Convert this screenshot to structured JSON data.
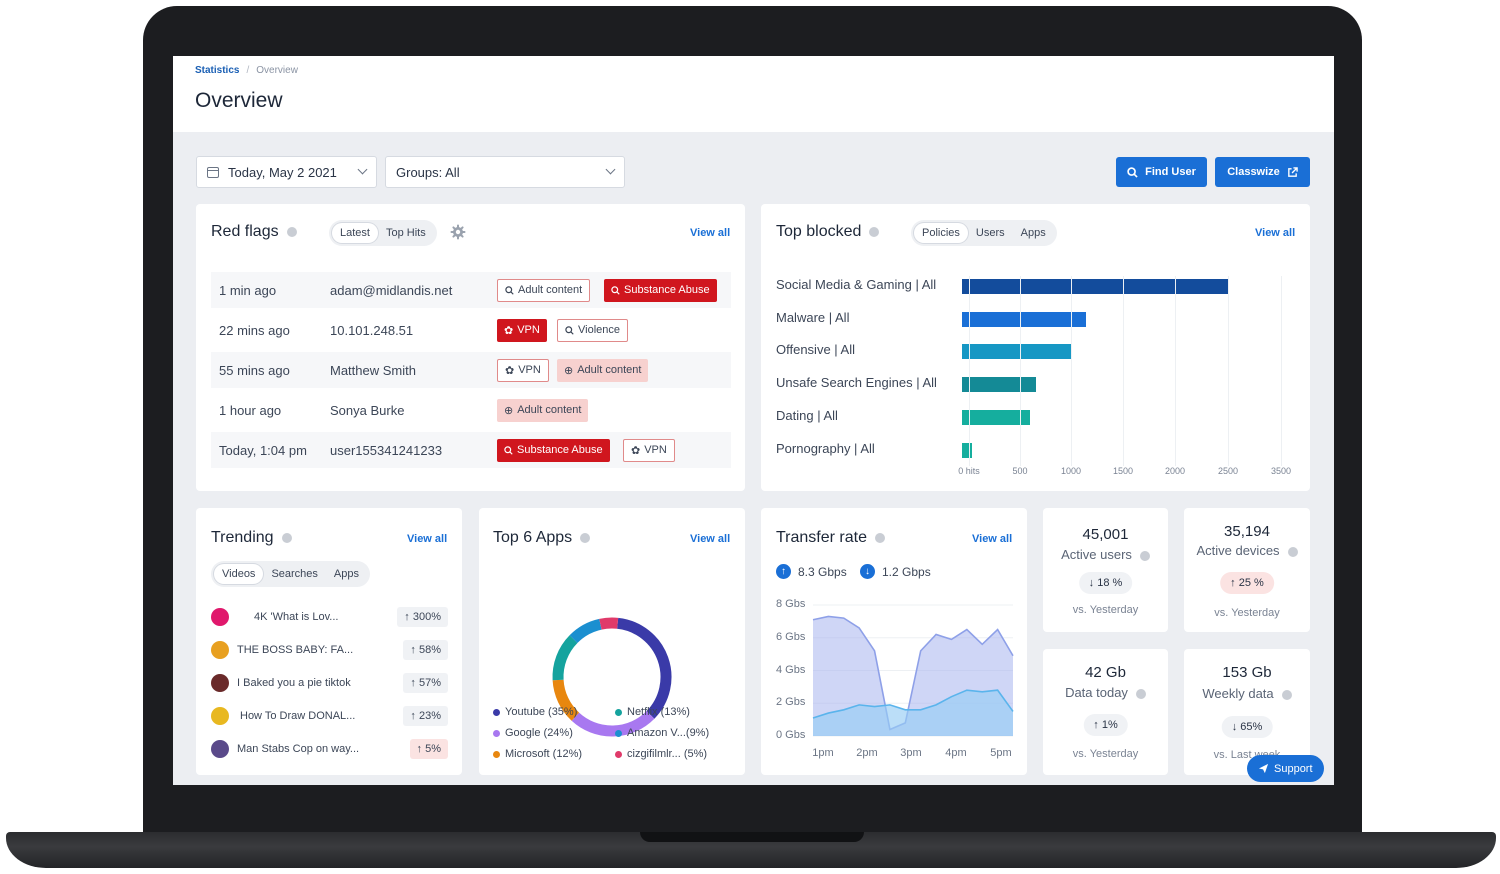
{
  "breadcrumb": {
    "root": "Statistics",
    "current": "Overview"
  },
  "page_title": "Overview",
  "filters": {
    "date": "Today, May 2 2021",
    "groups": "Groups: All"
  },
  "actions": {
    "find_user": "Find User",
    "classwize": "Classwize"
  },
  "red_flags": {
    "title": "Red flags",
    "tabs": [
      "Latest",
      "Top Hits"
    ],
    "view_all": "View all",
    "rows": [
      {
        "time": "1 min ago",
        "user": "adam@midlandis.net"
      },
      {
        "time": "22 mins ago",
        "user": "10.101.248.51"
      },
      {
        "time": "55 mins ago",
        "user": "Matthew Smith"
      },
      {
        "time": "1 hour ago",
        "user": "Sonya Burke"
      },
      {
        "time": "Today, 1:04 pm",
        "user": "user155341241233"
      }
    ],
    "tags": {
      "adult_content": "Adult content",
      "substance_abuse": "Substance Abuse",
      "vpn": "VPN",
      "violence": "Violence"
    }
  },
  "top_blocked": {
    "title": "Top blocked",
    "tabs": [
      "Policies",
      "Users",
      "Apps"
    ],
    "view_all": "View all",
    "chart_data": {
      "type": "bar",
      "orientation": "horizontal",
      "categories": [
        "Social Media & Gaming | All",
        "Malware | All",
        "Offensive | All",
        "Unsafe Search Engines | All",
        "Dating | All",
        "Pornography | All"
      ],
      "values": [
        2800,
        1300,
        1150,
        780,
        720,
        100
      ],
      "x_ticks": [
        "0 hits",
        "500",
        "1000",
        "1500",
        "2000",
        "2500",
        "3500"
      ],
      "colors": [
        "#134c9c",
        "#1a6fd6",
        "#1697c4",
        "#148a96",
        "#15ae9e",
        "#15ae9e"
      ]
    }
  },
  "trending": {
    "title": "Trending",
    "tabs": [
      "Videos",
      "Searches",
      "Apps"
    ],
    "view_all": "View all",
    "items": [
      {
        "title": "4K 'What is Lov...",
        "change": "↑ 300%",
        "color": "#e0186c"
      },
      {
        "title": "THE BOSS BABY: FA...",
        "change": "↑ 58%",
        "color": "#e8a020"
      },
      {
        "title": "I Baked you a pie tiktok",
        "change": "↑ 57%",
        "color": "#6a2a2a"
      },
      {
        "title": "How To Draw DONAL...",
        "change": "↑ 23%",
        "color": "#e8b820"
      },
      {
        "title": "Man Stabs Cop on way...",
        "change": "↑ 5%",
        "color": "#5a4a8a"
      }
    ]
  },
  "top_apps": {
    "title": "Top 6 Apps",
    "view_all": "View all",
    "chart_data": {
      "type": "pie",
      "variant": "donut",
      "categories": [
        "Youtube",
        "Netflix",
        "Google",
        "Amazon V...",
        "Microsoft",
        "cizgifilmlr..."
      ],
      "values": [
        35,
        13,
        24,
        9,
        12,
        5
      ],
      "legend": [
        "Youtube (35%)",
        "Netflix (13%)",
        "Google (24%)",
        "Amazon V...(9%)",
        "Microsoft (12%)",
        "cizgifilmlr... (5%)"
      ],
      "colors": [
        "#3a3aa8",
        "#15a39e",
        "#a878f0",
        "#1b8fd0",
        "#e8870f",
        "#e03a6a"
      ]
    }
  },
  "transfer_rate": {
    "title": "Transfer rate",
    "view_all": "View all",
    "upload": "8.3 Gbps",
    "download": "1.2 Gbps",
    "chart_data": {
      "type": "area",
      "ylim": [
        0,
        8
      ],
      "y_ticks": [
        "8 Gbs",
        "6 Gbs",
        "4 Gbs",
        "2 Gbs",
        "0 Gbs"
      ],
      "x_ticks": [
        "1pm",
        "2pm",
        "3pm",
        "4pm",
        "5pm"
      ],
      "series": [
        {
          "values": [
            7.1,
            7.3,
            7.2,
            6.6,
            5.2,
            0.4,
            0.8,
            5.2,
            6.2,
            5.9,
            6.5,
            5.6,
            6.5,
            4.9
          ]
        },
        {
          "values": [
            1.1,
            1.4,
            1.6,
            1.9,
            1.8,
            1.9,
            1.6,
            1.6,
            1.9,
            2.4,
            2.8,
            2.7,
            2.8,
            1.5
          ]
        }
      ],
      "colors": [
        "#8ea0e8",
        "#5ab4ec"
      ]
    }
  },
  "stats": [
    {
      "value": "45,001",
      "label": "Active users",
      "change": "↓ 18 %",
      "sub": "vs. Yesterday",
      "tone": "neutral"
    },
    {
      "value": "35,194",
      "label": "Active devices",
      "change": "↑ 25 %",
      "sub": "vs. Yesterday",
      "tone": "red"
    },
    {
      "value": "42 Gb",
      "label": "Data today",
      "change": "↑ 1%",
      "sub": "vs. Yesterday",
      "tone": "neutral"
    },
    {
      "value": "153 Gb",
      "label": "Weekly data",
      "change": "↓ 65%",
      "sub": "vs. Last week",
      "tone": "neutral"
    }
  ],
  "support": "Support"
}
